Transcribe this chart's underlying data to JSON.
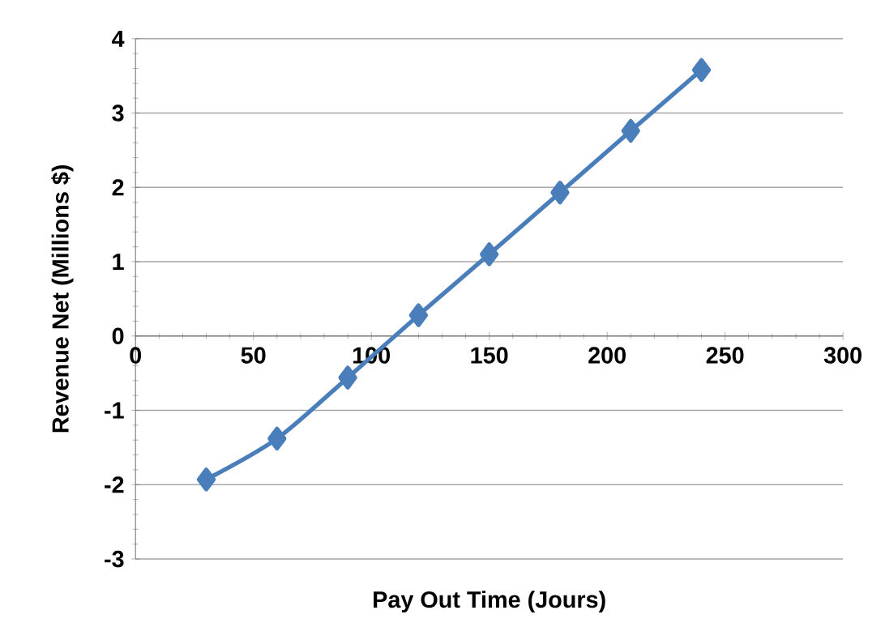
{
  "chart_data": {
    "type": "line",
    "xlabel": "Pay Out Time (Jours)",
    "ylabel": "Revenue Net (Millions $)",
    "x": [
      30,
      60,
      90,
      120,
      150,
      180,
      210,
      240
    ],
    "series": [
      {
        "color": "#4a7ebb",
        "values": [
          -1.93,
          -1.38,
          -0.56,
          0.28,
          1.1,
          1.93,
          2.76,
          3.58
        ]
      }
    ],
    "xlim": [
      0,
      300
    ],
    "ylim": [
      -3,
      4
    ],
    "xticks": [
      0,
      50,
      100,
      150,
      200,
      250,
      300
    ],
    "yticks": [
      -3,
      -2,
      -1,
      0,
      1,
      2,
      3,
      4
    ],
    "grid": "y",
    "marker": "diamond",
    "line_style": "solid"
  }
}
